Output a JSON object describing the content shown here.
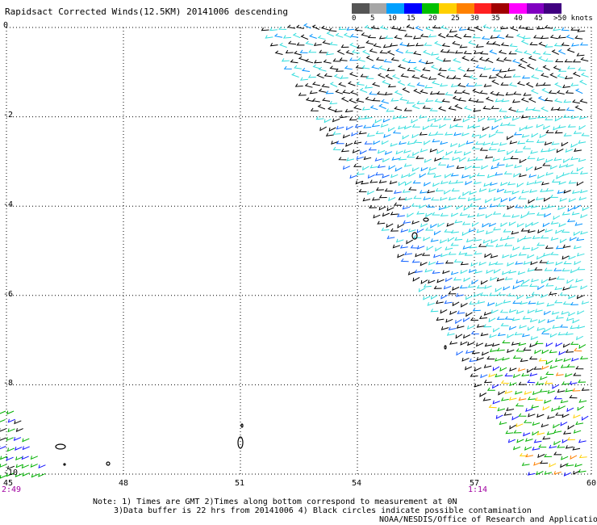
{
  "title": "Rapidsact Corrected Winds(12.5KM) 20141006 descending",
  "legend": {
    "colors": [
      "#555555",
      "#a6a6a6",
      "#00a0ff",
      "#0000ff",
      "#00c000",
      "#ffd000",
      "#ff8000",
      "#ff2020",
      "#a00000",
      "#ff00ff",
      "#8000c0",
      "#400080"
    ],
    "labels": [
      "0",
      "5",
      "10",
      "15",
      "20",
      "25",
      "30",
      "35",
      "40",
      "45",
      ">50 knots"
    ]
  },
  "y_axis_labels": [
    "0",
    "-2",
    "-4",
    "-6",
    "-8",
    "-10"
  ],
  "x_axis_labels": [
    "45",
    "48",
    "51",
    "54",
    "57",
    "60"
  ],
  "time_labels": {
    "left": "2:49",
    "right": "1:14"
  },
  "notes": {
    "line1": "Note: 1) Times are GMT 2)Times along bottom correspond to measurement at 0N",
    "line2": "3)Data buffer is 22 hrs from 20141006 4) Black circles indicate possible contamination",
    "line3": "NOAA/NESDIS/Office of Research and Applications"
  },
  "map_data": {
    "lon_range": [
      45,
      60
    ],
    "lat_range": [
      -10,
      0
    ],
    "gridlines_dotted": true,
    "swath_edge": [
      [
        51.7,
        0
      ],
      [
        57.3,
        -8.1
      ]
    ],
    "wind_zones": [
      {
        "lat": [
          -2,
          0
        ],
        "lon": [
          51.7,
          60
        ],
        "color": "cyan-black mixed"
      },
      {
        "lat": [
          -7,
          -2
        ],
        "lon": [
          53.5,
          60
        ],
        "color": "cyan"
      },
      {
        "lat": [
          -10,
          -7
        ],
        "lon": [
          56.5,
          60
        ],
        "color": "green-blue-yellow"
      },
      {
        "lat": [
          -10,
          -8.5
        ],
        "lon": [
          45,
          45.8
        ],
        "color": "green-blue"
      }
    ]
  }
}
